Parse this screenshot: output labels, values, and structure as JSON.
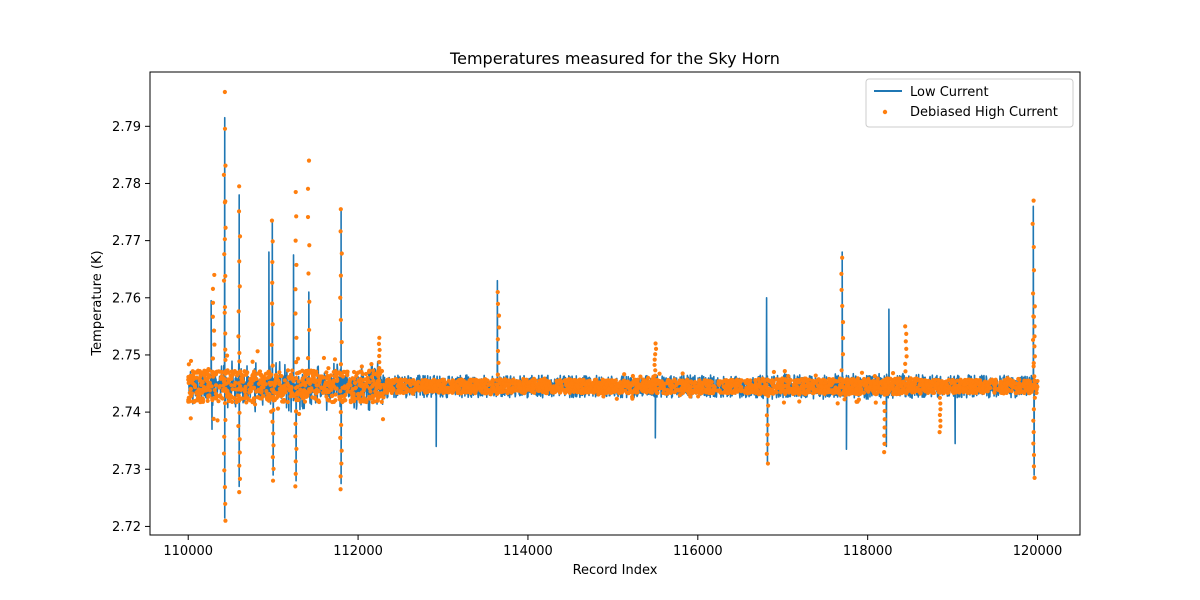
{
  "chart_data": {
    "type": "line",
    "title": "Temperatures measured for the Sky Horn",
    "xlabel": "Record Index",
    "ylabel": "Temperature (K)",
    "xlim": [
      109550,
      120500
    ],
    "ylim": [
      2.7185,
      2.7995
    ],
    "xticks": [
      110000,
      112000,
      114000,
      116000,
      118000,
      120000
    ],
    "xtick_labels": [
      "110000",
      "112000",
      "114000",
      "116000",
      "118000",
      "120000"
    ],
    "yticks": [
      2.72,
      2.73,
      2.74,
      2.75,
      2.76,
      2.77,
      2.78,
      2.79
    ],
    "ytick_labels": [
      "2.72",
      "2.73",
      "2.74",
      "2.75",
      "2.76",
      "2.77",
      "2.78",
      "2.79"
    ],
    "legend_position": "top-right",
    "baseline": 2.7445,
    "series": [
      {
        "name": "Low Current",
        "kind": "line",
        "color": "#1f77b4",
        "band": [
          2.7425,
          2.7465
        ],
        "spikes": [
          {
            "x": 110270,
            "y": 2.7595
          },
          {
            "x": 110280,
            "y": 2.737
          },
          {
            "x": 110430,
            "y": 2.7915
          },
          {
            "x": 110430,
            "y": 2.7215
          },
          {
            "x": 110600,
            "y": 2.778
          },
          {
            "x": 110600,
            "y": 2.727
          },
          {
            "x": 110950,
            "y": 2.768
          },
          {
            "x": 110990,
            "y": 2.7735
          },
          {
            "x": 111000,
            "y": 2.729
          },
          {
            "x": 111240,
            "y": 2.7675
          },
          {
            "x": 111270,
            "y": 2.728
          },
          {
            "x": 111420,
            "y": 2.761
          },
          {
            "x": 111800,
            "y": 2.7755
          },
          {
            "x": 111800,
            "y": 2.7275
          },
          {
            "x": 112920,
            "y": 2.734
          },
          {
            "x": 113640,
            "y": 2.763
          },
          {
            "x": 115500,
            "y": 2.7355
          },
          {
            "x": 116810,
            "y": 2.76
          },
          {
            "x": 116820,
            "y": 2.731
          },
          {
            "x": 117700,
            "y": 2.768
          },
          {
            "x": 117750,
            "y": 2.7335
          },
          {
            "x": 118250,
            "y": 2.758
          },
          {
            "x": 118220,
            "y": 2.734
          },
          {
            "x": 119030,
            "y": 2.7345
          },
          {
            "x": 119950,
            "y": 2.776
          },
          {
            "x": 119960,
            "y": 2.729
          }
        ]
      },
      {
        "name": "Debiased High Current",
        "kind": "scatter",
        "color": "#ff7f0e",
        "spikes": [
          {
            "x": 110430,
            "y": 2.796
          },
          {
            "x": 110430,
            "y": 2.7815
          },
          {
            "x": 110430,
            "y": 2.721
          },
          {
            "x": 110300,
            "y": 2.764
          },
          {
            "x": 110600,
            "y": 2.7795
          },
          {
            "x": 110600,
            "y": 2.726
          },
          {
            "x": 110990,
            "y": 2.7735
          },
          {
            "x": 111000,
            "y": 2.728
          },
          {
            "x": 111270,
            "y": 2.7785
          },
          {
            "x": 111270,
            "y": 2.727
          },
          {
            "x": 111420,
            "y": 2.784
          },
          {
            "x": 111800,
            "y": 2.7755
          },
          {
            "x": 111800,
            "y": 2.7265
          },
          {
            "x": 112250,
            "y": 2.753
          },
          {
            "x": 113650,
            "y": 2.761
          },
          {
            "x": 115500,
            "y": 2.752
          },
          {
            "x": 116820,
            "y": 2.731
          },
          {
            "x": 117700,
            "y": 2.767
          },
          {
            "x": 118200,
            "y": 2.733
          },
          {
            "x": 118450,
            "y": 2.755
          },
          {
            "x": 118850,
            "y": 2.7365
          },
          {
            "x": 119950,
            "y": 2.777
          },
          {
            "x": 119960,
            "y": 2.7585
          },
          {
            "x": 119960,
            "y": 2.7285
          }
        ]
      }
    ],
    "active_regions": [
      {
        "x_start": 110000,
        "x_end": 112300,
        "amp": 0.008
      },
      {
        "x_start": 113500,
        "x_end": 114300,
        "amp": 0.002
      },
      {
        "x_start": 114800,
        "x_end": 116200,
        "amp": 0.003
      },
      {
        "x_start": 116700,
        "x_end": 118600,
        "amp": 0.004
      },
      {
        "x_start": 119500,
        "x_end": 120000,
        "amp": 0.002
      }
    ]
  }
}
